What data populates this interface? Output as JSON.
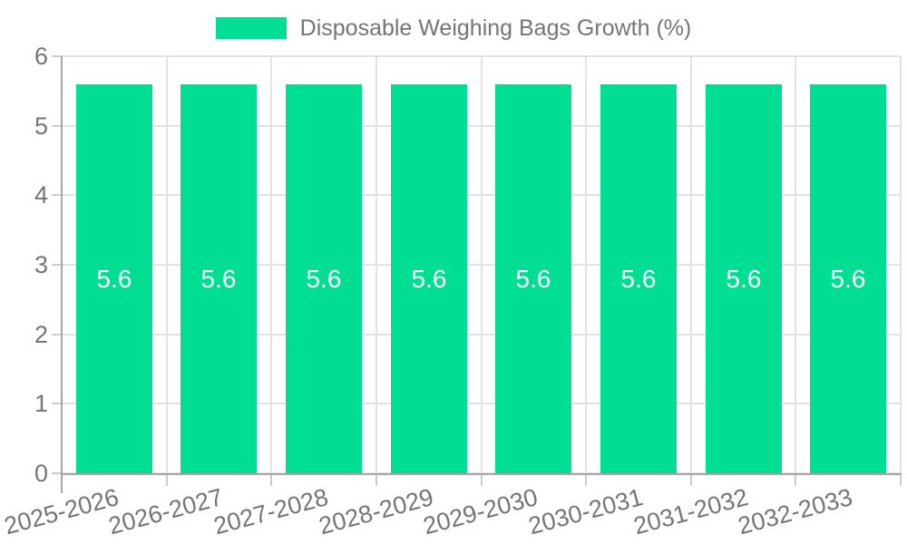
{
  "chart_data": {
    "type": "bar",
    "title": "",
    "legend": {
      "label": "Disposable Weighing Bags Growth (%)",
      "position": "top-center"
    },
    "categories": [
      "2025-2026",
      "2026-2027",
      "2027-2028",
      "2028-2029",
      "2029-2030",
      "2030-2031",
      "2031-2032",
      "2032-2033"
    ],
    "series": [
      {
        "name": "Disposable Weighing Bags Growth (%)",
        "values": [
          5.6,
          5.6,
          5.6,
          5.6,
          5.6,
          5.6,
          5.6,
          5.6
        ]
      }
    ],
    "xlabel": "",
    "ylabel": "",
    "ylim": [
      0,
      6
    ],
    "yticks": [
      0,
      1,
      2,
      3,
      4,
      5,
      6
    ],
    "value_label_decimals": 1,
    "grid": true,
    "x_label_rotation_deg": -15,
    "colors": {
      "bar": "#00DE94",
      "bar_label": "#ffffff",
      "axis_text": "#757575",
      "legend_text": "#757575",
      "grid": "#e2e2e2",
      "axis_line": "#a6a6a6",
      "tick": "#cccccc",
      "background": "#ffffff"
    }
  }
}
